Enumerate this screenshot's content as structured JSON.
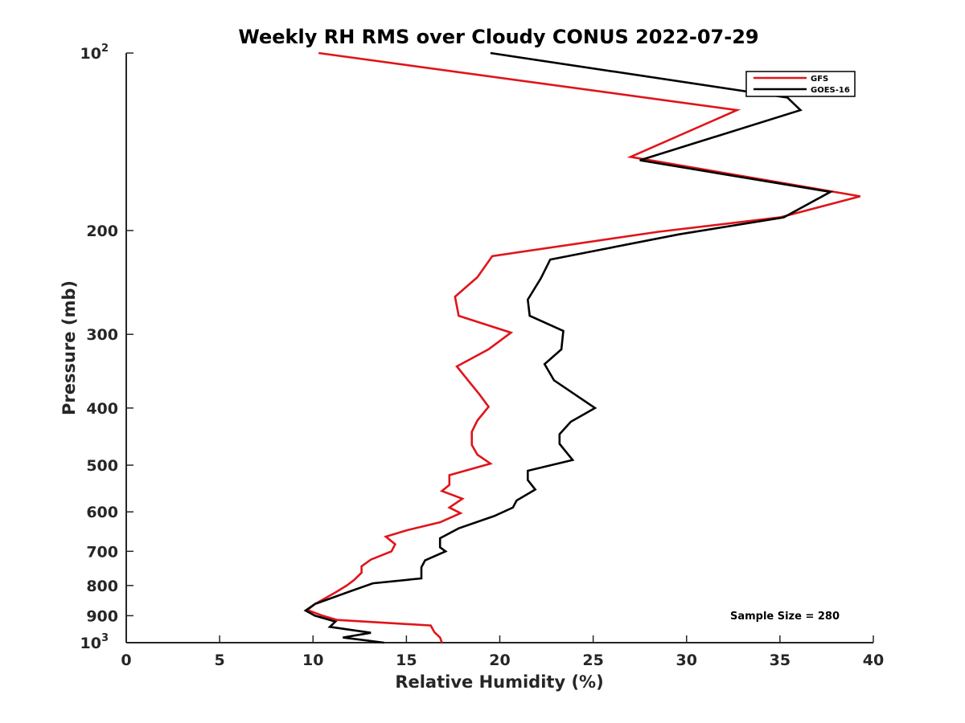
{
  "chart_data": {
    "type": "line",
    "title": "Weekly RH RMS over Cloudy CONUS 2022-07-29",
    "xlabel": "Relative Humidity (%)",
    "ylabel": "Pressure (mb)",
    "xlim": [
      0,
      40
    ],
    "ylim": [
      100,
      1000
    ],
    "y_scale": "log",
    "y_reversed": true,
    "x_ticks": [
      "0",
      "5",
      "10",
      "15",
      "20",
      "25",
      "30",
      "35",
      "40"
    ],
    "y_ticks": [
      {
        "value": 100,
        "base": "10",
        "exp": "2"
      },
      {
        "value": 200,
        "label": "200"
      },
      {
        "value": 300,
        "label": "300"
      },
      {
        "value": 400,
        "label": "400"
      },
      {
        "value": 500,
        "label": "500"
      },
      {
        "value": 600,
        "label": "600"
      },
      {
        "value": 700,
        "label": "700"
      },
      {
        "value": 800,
        "label": "800"
      },
      {
        "value": 900,
        "label": "900"
      },
      {
        "value": 1000,
        "base": "10",
        "exp": "3"
      }
    ],
    "legend_position": "top-right",
    "annotation": "Sample Size = 280",
    "series": [
      {
        "name": "GFS",
        "color": "#e0141a",
        "points": [
          [
            10.3,
            100
          ],
          [
            32.7,
            125
          ],
          [
            27.0,
            150
          ],
          [
            39.3,
            175
          ],
          [
            35.0,
            190
          ],
          [
            28.5,
            201
          ],
          [
            19.6,
            221
          ],
          [
            18.8,
            240
          ],
          [
            17.6,
            259
          ],
          [
            17.8,
            279
          ],
          [
            20.6,
            298
          ],
          [
            19.4,
            318
          ],
          [
            17.7,
            340
          ],
          [
            18.3,
            359
          ],
          [
            18.9,
            379
          ],
          [
            19.4,
            398
          ],
          [
            18.8,
            420
          ],
          [
            18.5,
            439
          ],
          [
            18.5,
            462
          ],
          [
            18.8,
            480
          ],
          [
            19.5,
            497
          ],
          [
            17.3,
            520
          ],
          [
            17.3,
            540
          ],
          [
            16.9,
            553
          ],
          [
            18.0,
            570
          ],
          [
            17.3,
            590
          ],
          [
            17.9,
            603
          ],
          [
            16.8,
            625
          ],
          [
            15.0,
            645
          ],
          [
            13.9,
            661
          ],
          [
            14.4,
            681
          ],
          [
            14.2,
            700
          ],
          [
            13.1,
            723
          ],
          [
            12.6,
            742
          ],
          [
            12.6,
            761
          ],
          [
            12.2,
            783
          ],
          [
            11.8,
            800
          ],
          [
            11.2,
            822
          ],
          [
            10.1,
            860
          ],
          [
            9.7,
            880
          ],
          [
            10.5,
            900
          ],
          [
            11.3,
            915
          ],
          [
            16.3,
            935
          ],
          [
            16.5,
            960
          ],
          [
            16.8,
            980
          ],
          [
            16.9,
            1000
          ]
        ]
      },
      {
        "name": "GOES-16",
        "color": "#000000",
        "points": [
          [
            19.5,
            100
          ],
          [
            35.4,
            119
          ],
          [
            36.1,
            125
          ],
          [
            27.5,
            152
          ],
          [
            37.7,
            172
          ],
          [
            35.2,
            190
          ],
          [
            29.6,
            203
          ],
          [
            22.7,
            224
          ],
          [
            22.2,
            241
          ],
          [
            21.5,
            262
          ],
          [
            21.6,
            279
          ],
          [
            23.4,
            296
          ],
          [
            23.3,
            318
          ],
          [
            22.4,
            337
          ],
          [
            22.9,
            359
          ],
          [
            25.1,
            400
          ],
          [
            23.8,
            422
          ],
          [
            23.2,
            443
          ],
          [
            23.2,
            460
          ],
          [
            23.9,
            490
          ],
          [
            21.5,
            511
          ],
          [
            21.5,
            530
          ],
          [
            21.9,
            550
          ],
          [
            20.9,
            574
          ],
          [
            20.7,
            590
          ],
          [
            19.7,
            610
          ],
          [
            17.8,
            640
          ],
          [
            16.8,
            665
          ],
          [
            16.8,
            689
          ],
          [
            17.1,
            700
          ],
          [
            16.0,
            725
          ],
          [
            15.8,
            745
          ],
          [
            15.8,
            778
          ],
          [
            13.2,
            793
          ],
          [
            12.0,
            818
          ],
          [
            10.1,
            860
          ],
          [
            9.6,
            882
          ],
          [
            10.1,
            900
          ],
          [
            11.2,
            921
          ],
          [
            10.9,
            940
          ],
          [
            13.1,
            962
          ],
          [
            11.6,
            980
          ],
          [
            13.8,
            1000
          ]
        ]
      }
    ]
  }
}
